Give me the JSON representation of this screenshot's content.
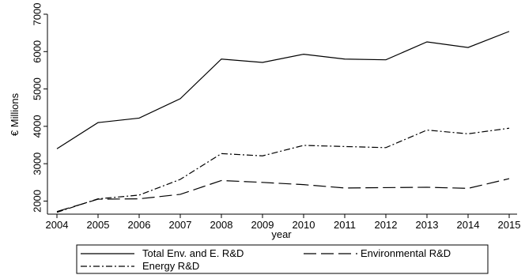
{
  "chart_data": {
    "type": "line",
    "title": "",
    "xlabel": "year",
    "ylabel": "€ Millions",
    "x": [
      2004,
      2005,
      2006,
      2007,
      2008,
      2009,
      2010,
      2011,
      2012,
      2013,
      2014,
      2015
    ],
    "xticks": [
      "2004",
      "2005",
      "2006",
      "2007",
      "2008",
      "2009",
      "2010",
      "2011",
      "2012",
      "2013",
      "2014",
      "2015"
    ],
    "yticks": [
      "2000",
      "3000",
      "4000",
      "5000",
      "6000",
      "7000"
    ],
    "ylim": [
      1650,
      7000
    ],
    "grid": false,
    "legend_position": "bottom",
    "series": [
      {
        "name": "Total Env. and E. R&D",
        "dash": "solid",
        "values": [
          3400,
          4100,
          4220,
          4740,
          5800,
          5710,
          5930,
          5800,
          5780,
          6260,
          6110,
          6540
        ]
      },
      {
        "name": "Environmental R&D",
        "dash": "long-dash",
        "values": [
          1720,
          2050,
          2060,
          2180,
          2550,
          2500,
          2440,
          2350,
          2360,
          2370,
          2340,
          2600
        ]
      },
      {
        "name": "Energy R&D",
        "dash": "dash-dot",
        "values": [
          1700,
          2060,
          2160,
          2580,
          3270,
          3210,
          3490,
          3460,
          3430,
          3900,
          3800,
          3950
        ]
      }
    ]
  }
}
